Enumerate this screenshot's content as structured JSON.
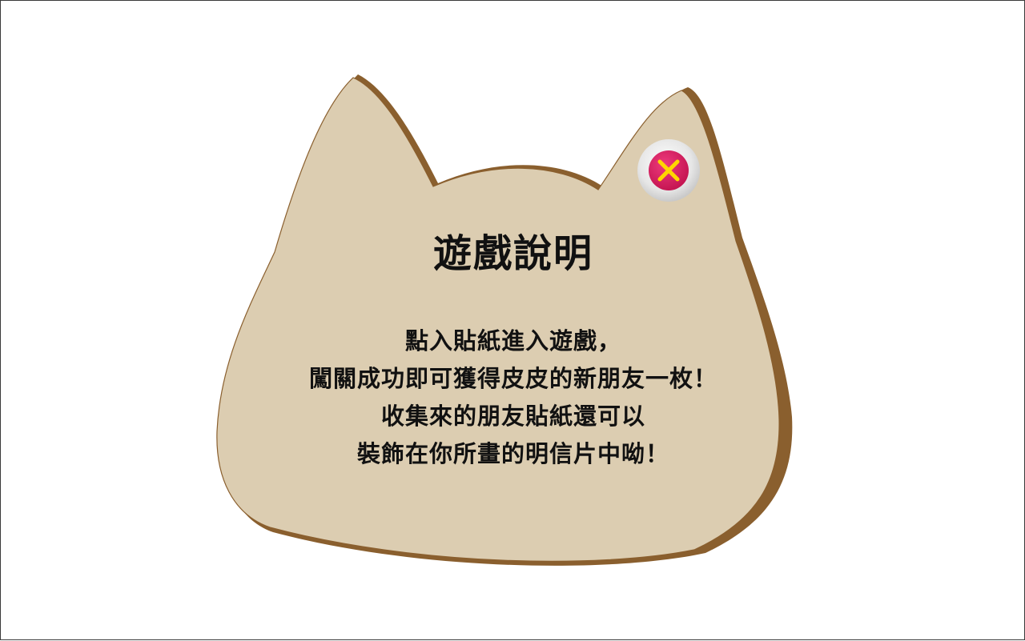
{
  "dialog": {
    "title": "遊戲說明",
    "lines": [
      "點入貼紙進入遊戲，",
      "闖關成功即可獲得皮皮的新朋友一枚！",
      "收集來的朋友貼紙還可以",
      "裝飾在你所畫的明信片中呦！"
    ]
  },
  "close_button": {
    "icon": "close-icon"
  },
  "colors": {
    "panel_fill": "#dccdb1",
    "panel_edge": "#8a5f2e",
    "close_ring": "#dddddd",
    "close_fill": "#d81b60",
    "close_x": "#ffd600"
  }
}
